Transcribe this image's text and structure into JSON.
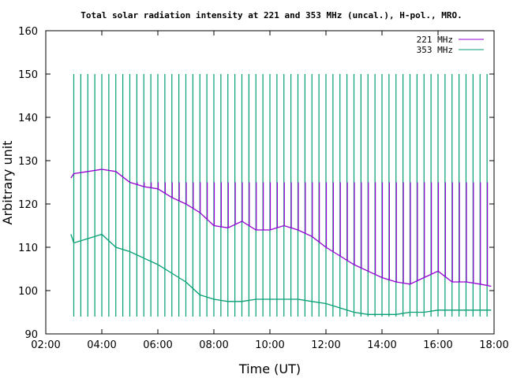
{
  "chart_data": {
    "type": "line",
    "title": "Total solar radiation intensity at 221 and 353 MHz (uncal.), H-pol., MRO.",
    "xlabel": "Time (UT)",
    "ylabel": "Arbitrary unit",
    "x_range_hours": [
      2,
      18
    ],
    "ylim": [
      90,
      160
    ],
    "x_ticks": [
      {
        "hour": 2,
        "label": "02:00"
      },
      {
        "hour": 4,
        "label": "04:00"
      },
      {
        "hour": 6,
        "label": "06:00"
      },
      {
        "hour": 8,
        "label": "08:00"
      },
      {
        "hour": 10,
        "label": "10:00"
      },
      {
        "hour": 12,
        "label": "12:00"
      },
      {
        "hour": 14,
        "label": "14:00"
      },
      {
        "hour": 16,
        "label": "16:00"
      },
      {
        "hour": 18,
        "label": "18:00"
      }
    ],
    "y_ticks": [
      90,
      100,
      110,
      120,
      130,
      140,
      150,
      160
    ],
    "grid": false,
    "legend_position": "top-right",
    "series": [
      {
        "name": "221 MHz",
        "color": "#9400d3",
        "x_hours": [
          2.9,
          3.0,
          3.5,
          4.0,
          4.5,
          5.0,
          5.5,
          6.0,
          6.5,
          7.0,
          7.5,
          8.0,
          8.5,
          9.0,
          9.5,
          10.0,
          10.5,
          11.0,
          11.5,
          12.0,
          12.5,
          13.0,
          13.5,
          14.0,
          14.5,
          15.0,
          15.5,
          16.0,
          16.5,
          17.0,
          17.5,
          17.9
        ],
        "values": [
          126,
          127,
          127.5,
          128,
          127.5,
          125,
          124,
          123.5,
          121.5,
          120,
          118,
          115,
          114.5,
          116,
          114,
          114,
          115,
          114,
          112.5,
          110,
          108,
          106,
          104.5,
          103,
          102,
          101.5,
          103,
          104.5,
          102,
          102,
          101.5,
          101
        ]
      },
      {
        "name": "353 MHz",
        "color": "#009e73",
        "x_hours": [
          2.9,
          3.0,
          3.5,
          4.0,
          4.5,
          5.0,
          5.5,
          6.0,
          6.5,
          7.0,
          7.5,
          8.0,
          8.5,
          9.0,
          9.5,
          10.0,
          10.5,
          11.0,
          11.5,
          12.0,
          12.5,
          13.0,
          13.5,
          14.0,
          14.5,
          15.0,
          15.5,
          16.0,
          16.5,
          17.0,
          17.5,
          17.9
        ],
        "values": [
          113,
          111,
          112,
          113,
          110,
          109,
          107.5,
          106,
          104,
          102,
          99,
          98,
          97.5,
          97.5,
          98,
          98,
          98,
          98,
          97.5,
          97,
          96,
          95,
          94.5,
          94.5,
          94.5,
          95,
          95,
          95.5,
          95.5,
          95.5,
          95.5,
          95.5
        ]
      }
    ],
    "calibration_spikes": {
      "start_hour": 3.0,
      "end_hour": 17.9,
      "interval_hours": 0.25,
      "peak_221": 125,
      "peak_353": 150,
      "dip_353": 94
    }
  }
}
